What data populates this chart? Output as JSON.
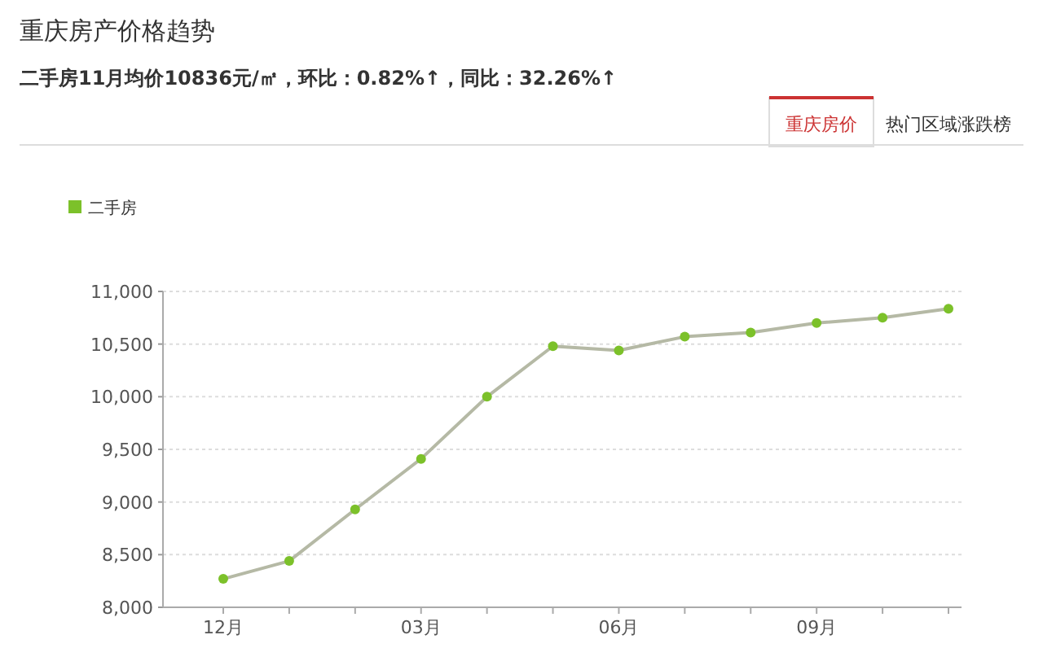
{
  "chart_data": {
    "type": "line",
    "title": "重庆房产价格趋势",
    "subtitle": "二手房11月均价10836元/㎡，环比：0.82%↑，同比：32.26%↑",
    "annotations": [
      "重庆房价",
      "热门区域涨跌榜"
    ],
    "categories": [
      "12月",
      null,
      null,
      "03月",
      null,
      null,
      "06月",
      null,
      null,
      "09月",
      null,
      null
    ],
    "series": [
      {
        "name": "二手房",
        "color": "#7cc12a",
        "values": [
          8270,
          8440,
          8930,
          9410,
          10000,
          10480,
          10440,
          10570,
          10610,
          10700,
          10750,
          10836
        ]
      }
    ],
    "ylim": [
      8000,
      11000
    ],
    "yticks": [
      {
        "value": 8000,
        "label": "8,000"
      },
      {
        "value": 8500,
        "label": "8,500"
      },
      {
        "value": 9000,
        "label": "9,000"
      },
      {
        "value": 9500,
        "label": "9,500"
      },
      {
        "value": 10000,
        "label": "10,000"
      },
      {
        "value": 10500,
        "label": "10,500"
      },
      {
        "value": 11000,
        "label": "11,000"
      }
    ],
    "grid": "y",
    "legend": "top left",
    "marker": "circle",
    "line_style": "solid"
  }
}
